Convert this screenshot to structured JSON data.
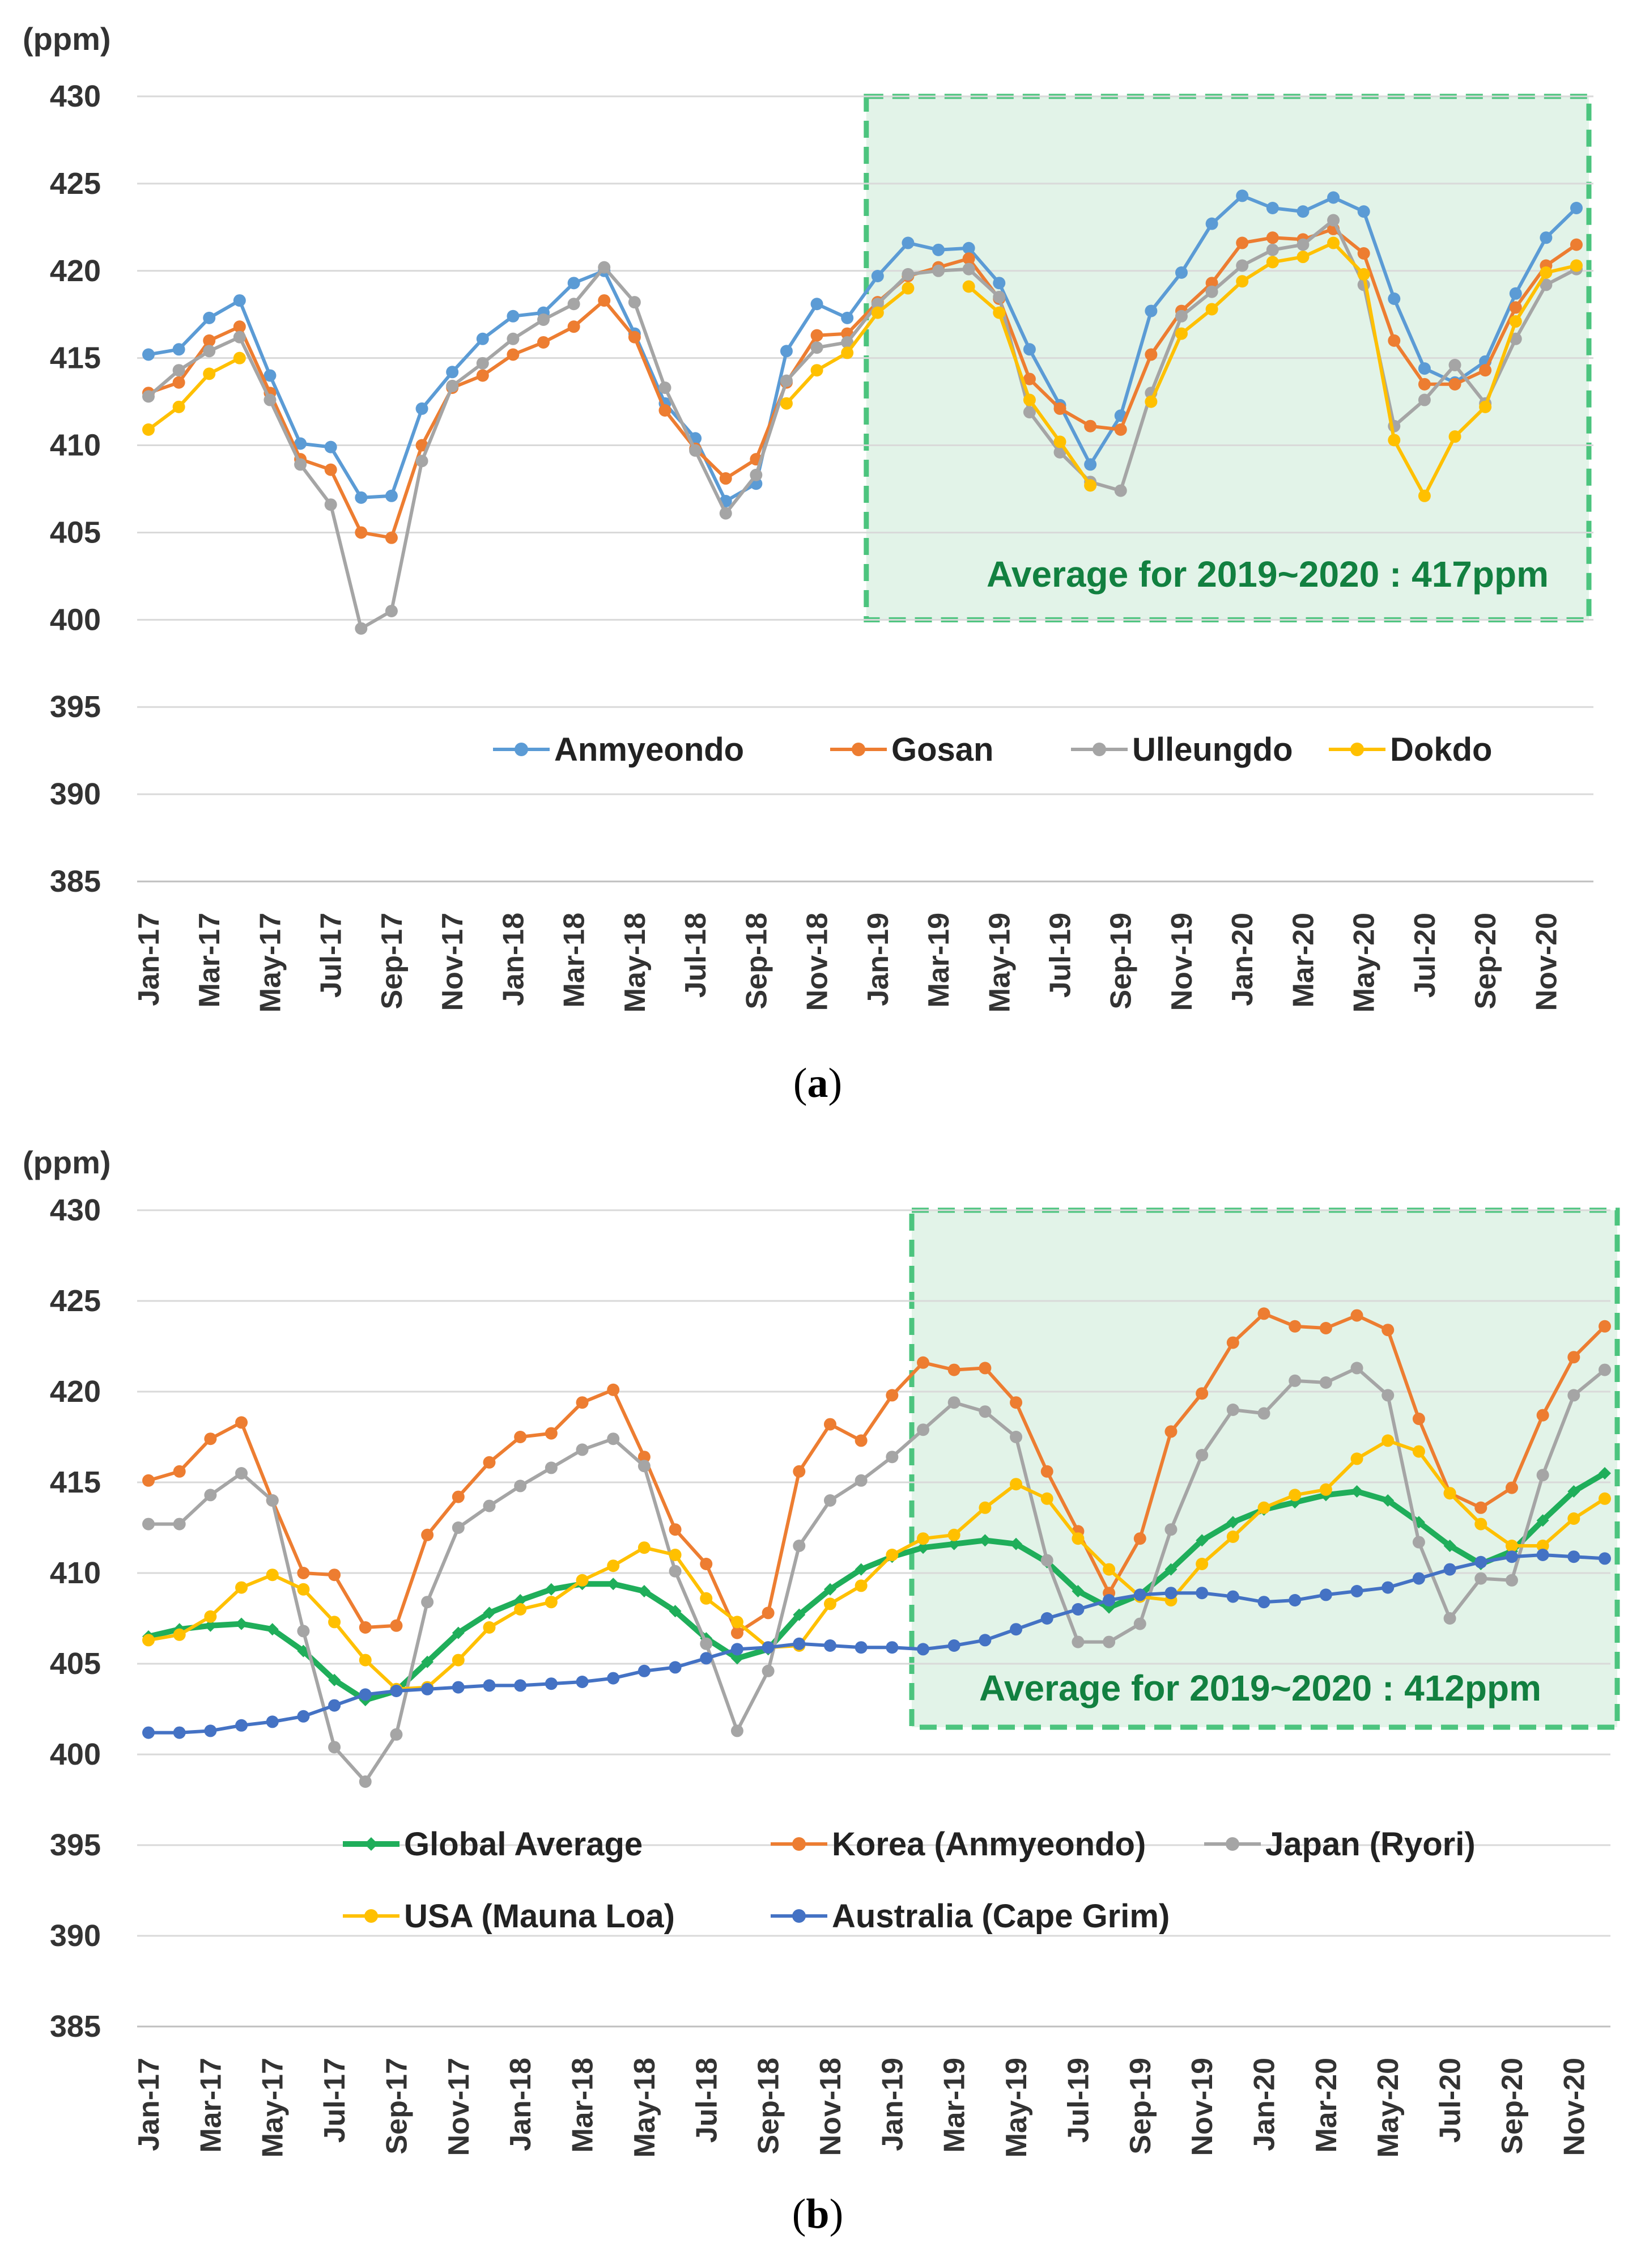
{
  "chart_data": [
    {
      "type": "line",
      "panel": "a",
      "caption": "(a)",
      "caption_letter": "a",
      "unit_label": "(ppm)",
      "ylim": [
        385,
        430
      ],
      "yticks": [
        385,
        390,
        395,
        400,
        405,
        410,
        415,
        420,
        425,
        430
      ],
      "xticklabels": [
        "Jan-17",
        "Mar-17",
        "May-17",
        "Jul-17",
        "Sep-17",
        "Nov-17",
        "Jan-18",
        "Mar-18",
        "May-18",
        "Jul-18",
        "Sep-18",
        "Nov-18",
        "Jan-19",
        "Mar-19",
        "May-19",
        "Jul-19",
        "Sep-19",
        "Nov-19",
        "Jan-20",
        "Mar-20",
        "May-20",
        "Jul-20",
        "Sep-20",
        "Nov-20"
      ],
      "n_months": 48,
      "grid": true,
      "legend_position": "bottom",
      "highlight": {
        "start_month": 24,
        "end_month": 47,
        "ymin": 400,
        "ymax": 430,
        "label": "Average for 2019~2020 : 417ppm"
      },
      "series": [
        {
          "name": "Anmyeondo",
          "color": "#5B9BD5",
          "marker": "circle",
          "values": [
            415.2,
            415.5,
            417.3,
            418.3,
            414.0,
            410.1,
            409.9,
            407.0,
            407.1,
            412.1,
            414.2,
            416.1,
            417.4,
            417.6,
            419.3,
            420.0,
            416.4,
            412.4,
            410.4,
            406.8,
            407.8,
            415.4,
            418.1,
            417.3,
            419.7,
            421.6,
            421.2,
            421.3,
            419.3,
            415.5,
            412.3,
            408.9,
            411.7,
            417.7,
            419.9,
            422.7,
            424.3,
            423.6,
            423.4,
            424.2,
            423.4,
            418.4,
            414.4,
            413.6,
            414.8,
            418.7,
            421.9,
            423.6
          ]
        },
        {
          "name": "Gosan",
          "color": "#ED7D31",
          "marker": "circle",
          "values": [
            413.0,
            413.6,
            416.0,
            416.8,
            413.0,
            409.2,
            408.6,
            405.0,
            404.7,
            410.0,
            413.3,
            414.0,
            415.2,
            415.9,
            416.8,
            418.3,
            416.2,
            412.0,
            409.8,
            408.1,
            409.2,
            413.6,
            416.3,
            416.4,
            418.2,
            419.7,
            420.2,
            420.7,
            418.4,
            413.8,
            412.1,
            411.1,
            410.9,
            415.2,
            417.7,
            419.3,
            421.6,
            421.9,
            421.8,
            422.4,
            421.0,
            416.0,
            413.5,
            413.5,
            414.3,
            417.9,
            420.3,
            421.5
          ]
        },
        {
          "name": "Ulleungdo",
          "color": "#A5A5A5",
          "marker": "circle",
          "values": [
            412.8,
            414.3,
            415.4,
            416.2,
            412.6,
            408.9,
            406.6,
            399.5,
            400.5,
            409.1,
            413.4,
            414.7,
            416.1,
            417.2,
            418.1,
            420.2,
            418.2,
            413.3,
            409.7,
            406.1,
            408.3,
            413.7,
            415.6,
            415.9,
            418.1,
            419.8,
            420.0,
            420.1,
            418.5,
            411.9,
            409.6,
            407.9,
            407.4,
            413.0,
            417.4,
            418.8,
            420.3,
            421.2,
            421.5,
            422.9,
            419.2,
            411.1,
            412.6,
            414.6,
            412.4,
            416.1,
            419.2,
            420.1
          ]
        },
        {
          "name": "Dokdo",
          "color": "#FFC000",
          "marker": "circle",
          "values": [
            410.9,
            412.2,
            414.1,
            415.0,
            null,
            null,
            null,
            null,
            null,
            null,
            null,
            null,
            null,
            null,
            null,
            null,
            null,
            null,
            null,
            null,
            null,
            412.4,
            414.3,
            415.3,
            417.6,
            419.0,
            null,
            419.1,
            417.6,
            412.6,
            410.2,
            407.7,
            null,
            412.5,
            416.4,
            417.8,
            419.4,
            420.5,
            420.8,
            421.6,
            419.8,
            410.3,
            407.1,
            410.5,
            412.2,
            417.1,
            419.9,
            420.3
          ]
        }
      ]
    },
    {
      "type": "line",
      "panel": "b",
      "caption": "(b)",
      "caption_letter": "b",
      "unit_label": "(ppm)",
      "ylim": [
        385,
        430
      ],
      "yticks": [
        385,
        390,
        395,
        400,
        405,
        410,
        415,
        420,
        425,
        430
      ],
      "xticklabels": [
        "Jan-17",
        "Mar-17",
        "May-17",
        "Jul-17",
        "Sep-17",
        "Nov-17",
        "Jan-18",
        "Mar-18",
        "May-18",
        "Jul-18",
        "Sep-18",
        "Nov-18",
        "Jan-19",
        "Mar-19",
        "May-19",
        "Jul-19",
        "Sep-19",
        "Nov-19",
        "Jan-20",
        "Mar-20",
        "May-20",
        "Jul-20",
        "Sep-20",
        "Nov-20"
      ],
      "n_months": 48,
      "grid": true,
      "legend_position": "bottom",
      "highlight": {
        "start_month": 25,
        "end_month": 47,
        "ymin": 401.5,
        "ymax": 430,
        "label": "Average for 2019~2020 : 412ppm"
      },
      "series": [
        {
          "name": "Global Average",
          "color": "#1FAE5A",
          "marker": "diamond",
          "width": 10,
          "values": [
            406.5,
            406.9,
            407.1,
            407.2,
            406.9,
            405.7,
            404.1,
            403.0,
            403.5,
            405.1,
            406.7,
            407.8,
            408.5,
            409.1,
            409.4,
            409.4,
            409.0,
            407.9,
            406.4,
            405.3,
            405.8,
            407.7,
            409.1,
            410.2,
            410.9,
            411.4,
            411.6,
            411.8,
            411.6,
            410.6,
            409.0,
            408.1,
            408.8,
            410.2,
            411.8,
            412.8,
            413.5,
            413.9,
            414.3,
            414.5,
            414.0,
            412.8,
            411.5,
            410.5,
            411.2,
            412.9,
            414.5,
            415.5
          ]
        },
        {
          "name": "Korea (Anmyeondo)",
          "color": "#ED7D31",
          "marker": "circle",
          "width": 6,
          "values": [
            415.1,
            415.6,
            417.4,
            418.3,
            414.0,
            410.0,
            409.9,
            407.0,
            407.1,
            412.1,
            414.2,
            416.1,
            417.5,
            417.7,
            419.4,
            420.1,
            416.4,
            412.4,
            410.5,
            406.7,
            407.8,
            415.6,
            418.2,
            417.3,
            419.8,
            421.6,
            421.2,
            421.3,
            419.4,
            415.6,
            412.3,
            408.9,
            411.9,
            417.8,
            419.9,
            422.7,
            424.3,
            423.6,
            423.5,
            424.2,
            423.4,
            418.5,
            414.4,
            413.6,
            414.7,
            418.7,
            421.9,
            423.6
          ]
        },
        {
          "name": "Japan (Ryori)",
          "color": "#A5A5A5",
          "marker": "circle",
          "width": 6,
          "values": [
            412.7,
            412.7,
            414.3,
            415.5,
            414.0,
            406.8,
            400.4,
            398.5,
            401.1,
            408.4,
            412.5,
            413.7,
            414.8,
            415.8,
            416.8,
            417.4,
            415.9,
            410.1,
            406.1,
            401.3,
            404.6,
            411.5,
            414.0,
            415.1,
            416.4,
            417.9,
            419.4,
            418.9,
            417.5,
            410.7,
            406.2,
            406.2,
            407.2,
            412.4,
            416.5,
            419.0,
            418.8,
            420.6,
            420.5,
            421.3,
            419.8,
            411.7,
            407.5,
            409.7,
            409.6,
            415.4,
            419.8,
            421.2
          ]
        },
        {
          "name": "USA (Mauna Loa)",
          "color": "#FFC000",
          "marker": "circle",
          "width": 6,
          "values": [
            406.3,
            406.6,
            407.6,
            409.2,
            409.9,
            409.1,
            407.3,
            405.2,
            403.6,
            403.7,
            405.2,
            407.0,
            408.0,
            408.4,
            409.6,
            410.4,
            411.4,
            411.0,
            408.6,
            407.3,
            405.9,
            406.0,
            408.3,
            409.3,
            411.0,
            411.9,
            412.1,
            413.6,
            414.9,
            414.1,
            411.9,
            410.2,
            408.7,
            408.5,
            410.5,
            412.0,
            413.6,
            414.3,
            414.6,
            416.3,
            417.3,
            416.7,
            414.4,
            412.7,
            411.5,
            411.5,
            413.0,
            414.1
          ]
        },
        {
          "name": "Australia (Cape Grim)",
          "color": "#4472C4",
          "marker": "circle",
          "width": 6,
          "values": [
            401.2,
            401.2,
            401.3,
            401.6,
            401.8,
            402.1,
            402.7,
            403.3,
            403.5,
            403.6,
            403.7,
            403.8,
            403.8,
            403.9,
            404.0,
            404.2,
            404.6,
            404.8,
            405.3,
            405.8,
            405.9,
            406.1,
            406.0,
            405.9,
            405.9,
            405.8,
            406.0,
            406.3,
            406.9,
            407.5,
            408.0,
            408.5,
            408.8,
            408.9,
            408.9,
            408.7,
            408.4,
            408.5,
            408.8,
            409.0,
            409.2,
            409.7,
            410.2,
            410.6,
            410.9,
            411.0,
            410.9,
            410.8
          ]
        }
      ]
    }
  ]
}
